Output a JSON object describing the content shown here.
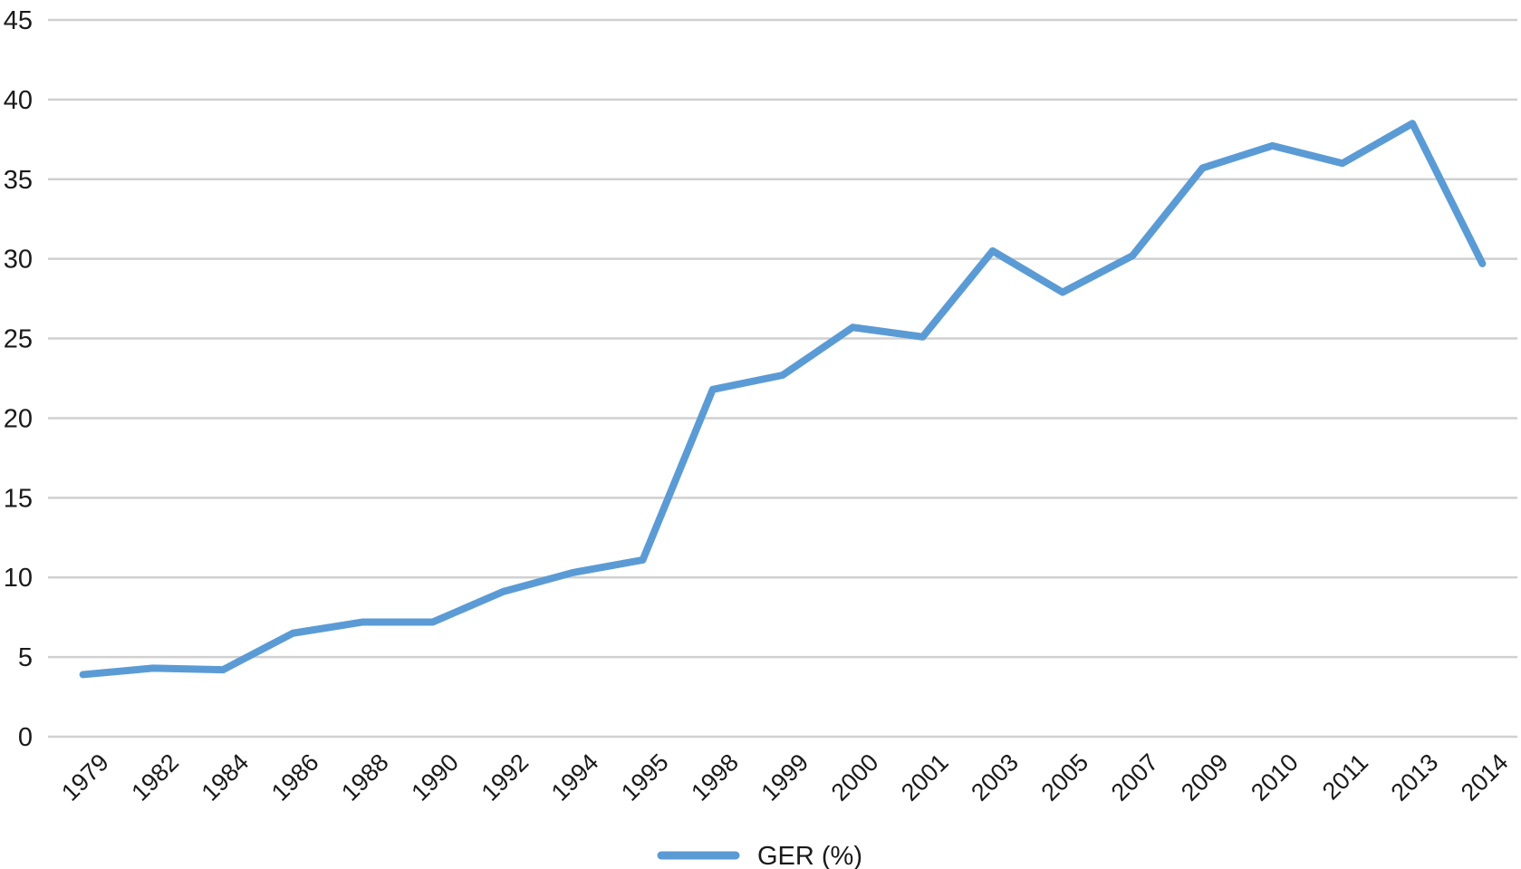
{
  "chart_data": {
    "type": "line",
    "title": "",
    "xlabel": "",
    "ylabel": "",
    "categories": [
      "1979",
      "1982",
      "1984",
      "1986",
      "1988",
      "1990",
      "1992",
      "1994",
      "1995",
      "1998",
      "1999",
      "2000",
      "2001",
      "2003",
      "2005",
      "2007",
      "2009",
      "2010",
      "2011",
      "2013",
      "2014"
    ],
    "y_ticks": [
      "0",
      "5",
      "10",
      "15",
      "20",
      "25",
      "30",
      "35",
      "40",
      "45"
    ],
    "ylim": [
      0,
      45
    ],
    "grid": true,
    "legend_position": "bottom",
    "series": [
      {
        "name": "GER (%)",
        "color": "#5b9bd5",
        "values": [
          3.9,
          4.3,
          4.2,
          6.5,
          7.2,
          7.2,
          9.1,
          10.3,
          11.1,
          21.8,
          22.7,
          25.7,
          25.1,
          30.5,
          27.9,
          30.2,
          35.7,
          37.1,
          36.0,
          38.5,
          29.7
        ]
      }
    ]
  }
}
